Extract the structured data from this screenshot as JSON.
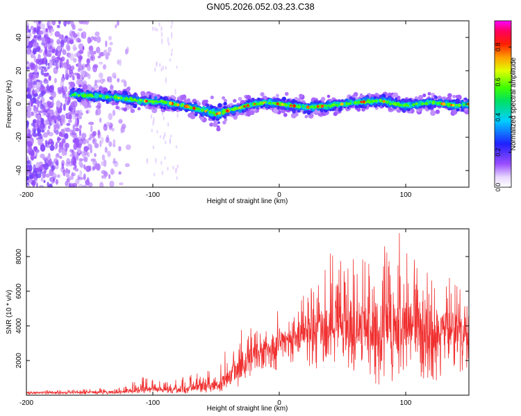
{
  "figure_title": "GN05.2026.052.03.23.C38",
  "chart_data": [
    {
      "type": "heatmap",
      "title": "GN05.2026.052.03.23.C38",
      "xlabel": "Height of straight line (km)",
      "ylabel": "Frequency (Hz)",
      "xlim": [
        -200,
        150
      ],
      "ylim": [
        -50,
        50
      ],
      "xticks": [
        -200,
        -100,
        0,
        100
      ],
      "yticks": [
        -40,
        -20,
        0,
        20,
        40
      ],
      "colorbar": {
        "label": "Normalized spectral amplitude",
        "range": [
          0,
          0.95
        ],
        "ticks": [
          0.0,
          0.2,
          0.4,
          0.6,
          0.8
        ],
        "tick_labels": [
          "0.0",
          "0.2",
          "0.4",
          "0.6",
          "0.8"
        ],
        "colormap": "rainbow (white-violet-blue-cyan-green-yellow-red-magenta)"
      },
      "ridge": {
        "description": "Dominant frequency track versus height",
        "x": [
          -165,
          -150,
          -130,
          -110,
          -90,
          -70,
          -55,
          -50,
          -40,
          -30,
          -20,
          -10,
          0,
          10,
          20,
          40,
          60,
          80,
          100,
          120,
          140,
          150
        ],
        "y": [
          6,
          5,
          4,
          2,
          1,
          -2,
          -5,
          -6,
          -4,
          -2,
          0,
          1,
          0,
          -1,
          -2,
          -1,
          1,
          2,
          -1,
          1,
          -1,
          0
        ]
      },
      "background_noise_region_x": [
        -200,
        -165
      ]
    },
    {
      "type": "line",
      "xlabel": "Height of straight line (km)",
      "ylabel": "SNR (10 * v/v)",
      "xlim": [
        -200,
        150
      ],
      "ylim": [
        0,
        9600
      ],
      "xticks": [
        -200,
        -100,
        0,
        100
      ],
      "yticks": [
        2000,
        4000,
        6000,
        8000
      ],
      "color": "#f03030",
      "series": [
        {
          "name": "SNR",
          "x": [
            -200,
            -180,
            -160,
            -140,
            -120,
            -110,
            -100,
            -90,
            -80,
            -70,
            -60,
            -50,
            -40,
            -30,
            -20,
            -10,
            0,
            10,
            20,
            30,
            40,
            50,
            60,
            70,
            80,
            90,
            100,
            110,
            120,
            130,
            140,
            150
          ],
          "mean": [
            150,
            150,
            160,
            180,
            220,
            350,
            420,
            300,
            380,
            450,
            500,
            550,
            1000,
            1800,
            2400,
            2800,
            3100,
            3300,
            3500,
            3800,
            4000,
            4000,
            3900,
            4000,
            4100,
            4000,
            4000,
            3900,
            3800,
            3900,
            3800,
            3700
          ],
          "max": [
            300,
            300,
            350,
            400,
            550,
            1200,
            900,
            800,
            900,
            1200,
            1400,
            1500,
            3200,
            4800,
            3800,
            4600,
            5200,
            4200,
            6000,
            7000,
            8200,
            7700,
            8400,
            7700,
            8600,
            9200,
            9600,
            7200,
            7600,
            7000,
            6500,
            6200
          ],
          "min": [
            50,
            50,
            60,
            60,
            80,
            100,
            120,
            90,
            100,
            120,
            150,
            150,
            200,
            600,
            1200,
            1500,
            1400,
            1800,
            1600,
            1500,
            1200,
            1000,
            1200,
            900,
            500,
            700,
            1500,
            800,
            600,
            1000,
            900,
            1500
          ]
        }
      ]
    }
  ]
}
